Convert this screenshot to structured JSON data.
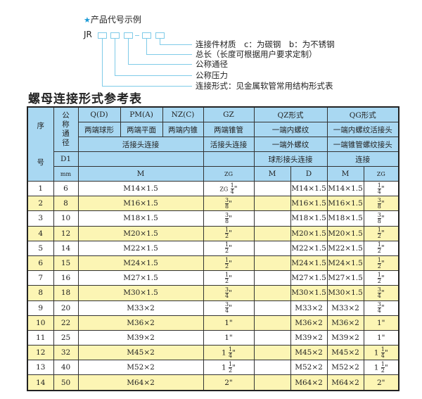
{
  "example": {
    "title": "产品代号示例",
    "star_icon": "star",
    "prefix": "JR",
    "labels": [
      "连接件材质　c：为碳钢　b：为不锈钢",
      "总长（长度可根据用户要求定制）",
      "公称通径",
      "公称压力",
      "连接形式：见金属软管常用结构形式表"
    ]
  },
  "table_title": "螺母连接形式参考表",
  "colors": {
    "header": "#a9d8f2",
    "alt_row": "#fcf5b4",
    "lines": "#7fcbe8"
  },
  "header": {
    "seq": "序",
    "seq2": "号",
    "dn": "公称通径",
    "d1": "D1",
    "mm": "mm",
    "types": [
      "Q(D)",
      "PM(A)",
      "NZ(C)",
      "GZ",
      "QZ形式",
      "QG形式"
    ],
    "shapes": [
      "两端球形",
      "两端平面",
      "两端内锥",
      "两端锥管",
      "一端内螺纹",
      "一端内螺纹活接头"
    ],
    "conn": [
      "活接头连接",
      "活接头连接",
      "一端外螺纹",
      "一端锥管螺纹接头"
    ],
    "conn2": [
      "球形接头连接",
      "连接"
    ],
    "units": [
      "M",
      "ZG",
      "M",
      "D",
      "M",
      "ZG"
    ]
  },
  "rows": [
    {
      "no": "1",
      "dn": "6",
      "m": "M14×1.5",
      "zg": {
        "prefix": "ZG",
        "whole": "",
        "num": "1",
        "den": "4"
      },
      "qz_m": "",
      "qz_d": "M14×1.5",
      "qg_m": "M14×1.5",
      "qg_zg": {
        "whole": "",
        "num": "1",
        "den": "4"
      }
    },
    {
      "no": "2",
      "dn": "8",
      "m": "M16×1.5",
      "zg": {
        "whole": "",
        "num": "3",
        "den": "8"
      },
      "qz_m": "",
      "qz_d": "M16×1.5",
      "qg_m": "M16×1.5",
      "qg_zg": {
        "whole": "",
        "num": "3",
        "den": "8"
      }
    },
    {
      "no": "3",
      "dn": "10",
      "m": "M18×1.5",
      "zg": {
        "whole": "",
        "num": "3",
        "den": "8"
      },
      "qz_m": "",
      "qz_d": "M18×1.5",
      "qg_m": "M18×1.5",
      "qg_zg": {
        "whole": "",
        "num": "3",
        "den": "8"
      }
    },
    {
      "no": "4",
      "dn": "12",
      "m": "M20×1.5",
      "zg": {
        "whole": "",
        "num": "1",
        "den": "2"
      },
      "qz_m": "",
      "qz_d": "M20×1.5",
      "qg_m": "M20×1.5",
      "qg_zg": {
        "whole": "",
        "num": "1",
        "den": "2"
      }
    },
    {
      "no": "5",
      "dn": "14",
      "m": "M22×1.5",
      "zg": {
        "whole": "",
        "num": "1",
        "den": "2"
      },
      "qz_m": "",
      "qz_d": "M22×1.5",
      "qg_m": "M22×1.5",
      "qg_zg": {
        "whole": "",
        "num": "1",
        "den": "2"
      }
    },
    {
      "no": "6",
      "dn": "15",
      "m": "M24×1.5",
      "zg": {
        "whole": "",
        "num": "1",
        "den": "2"
      },
      "qz_m": "",
      "qz_d": "M24×1.5",
      "qg_m": "M24×1.5",
      "qg_zg": {
        "whole": "",
        "num": "1",
        "den": "2"
      }
    },
    {
      "no": "7",
      "dn": "16",
      "m": "M27×1.5",
      "zg": {
        "whole": "",
        "num": "1",
        "den": "2"
      },
      "qz_m": "",
      "qz_d": "M27×1.5",
      "qg_m": "M27×1.5",
      "qg_zg": {
        "whole": "",
        "num": "1",
        "den": "2"
      }
    },
    {
      "no": "8",
      "dn": "18",
      "m": "M30×1.5",
      "zg": {
        "whole": "",
        "num": "3",
        "den": "4"
      },
      "qz_m": "",
      "qz_d": "M30×1.5",
      "qg_m": "M30×1.5",
      "qg_zg": {
        "whole": "",
        "num": "3",
        "den": "4"
      }
    },
    {
      "no": "9",
      "dn": "20",
      "m": "M33×2",
      "zg": {
        "whole": "",
        "num": "3",
        "den": "4"
      },
      "qz_m": "",
      "qz_d": "M33×2",
      "qg_m": "M33×2",
      "qg_zg": {
        "whole": "",
        "num": "3",
        "den": "4"
      }
    },
    {
      "no": "10",
      "dn": "22",
      "m": "M36×2",
      "zg": {
        "whole": "1",
        "num": "",
        "den": ""
      },
      "qz_m": "",
      "qz_d": "M36×2",
      "qg_m": "M36×2",
      "qg_zg": {
        "whole": "1",
        "num": "",
        "den": ""
      }
    },
    {
      "no": "11",
      "dn": "25",
      "m": "M39×2",
      "zg": {
        "whole": "1",
        "num": "",
        "den": ""
      },
      "qz_m": "",
      "qz_d": "M39×2",
      "qg_m": "M39×2",
      "qg_zg": {
        "whole": "1",
        "num": "",
        "den": ""
      }
    },
    {
      "no": "12",
      "dn": "32",
      "m": "M45×2",
      "zg": {
        "whole": "1",
        "num": "1",
        "den": "4"
      },
      "qz_m": "",
      "qz_d": "M45×2",
      "qg_m": "M45×2",
      "qg_zg": {
        "whole": "1",
        "num": "1",
        "den": "4"
      }
    },
    {
      "no": "13",
      "dn": "40",
      "m": "M52×2",
      "zg": {
        "whole": "1",
        "num": "1",
        "den": "2"
      },
      "qz_m": "",
      "qz_d": "M52×2",
      "qg_m": "M52×2",
      "qg_zg": {
        "whole": "1",
        "num": "1",
        "den": "2"
      }
    },
    {
      "no": "14",
      "dn": "50",
      "m": "M64×2",
      "zg": {
        "whole": "2",
        "num": "",
        "den": ""
      },
      "qz_m": "",
      "qz_d": "M64×2",
      "qg_m": "M64×2",
      "qg_zg": {
        "whole": "2",
        "num": "",
        "den": ""
      }
    }
  ]
}
